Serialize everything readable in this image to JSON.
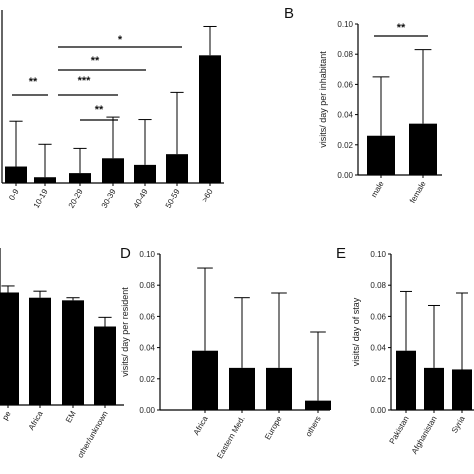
{
  "chart_data": [
    {
      "panel": "",
      "type": "bar",
      "categories": [
        "0-9",
        "10-19",
        "20-29",
        "30-39",
        "40-49",
        "50-59",
        ">60"
      ],
      "values": [
        0.2,
        0.07,
        0.12,
        0.3,
        0.22,
        0.35,
        1.55
      ],
      "errors": [
        0.55,
        0.4,
        0.3,
        0.5,
        0.55,
        0.75,
        0.35
      ],
      "ylim": [
        0,
        2.1
      ],
      "ylabel": "",
      "axis_y_visible": true,
      "significance": [
        {
          "from": "10-19",
          "to": "30-39",
          "label": "**"
        },
        {
          "from": "20-29",
          "to": "30-39",
          "label": "**"
        },
        {
          "from": "10-19",
          "to": "40-49",
          "label": "***"
        },
        {
          "from": "10-19",
          "to": "50-59",
          "label": "**"
        },
        {
          "from": "10-19",
          "to": "50-59",
          "label": "*"
        },
        {
          "from": "0-9",
          "to": "10-19",
          "label": "**"
        }
      ]
    },
    {
      "panel": "B",
      "type": "bar",
      "categories": [
        "male",
        "female"
      ],
      "values": [
        0.026,
        0.034
      ],
      "errors": [
        0.039,
        0.049
      ],
      "ylim": [
        0,
        0.1
      ],
      "yticks": [
        "0.00",
        "0.02",
        "0.04",
        "0.06",
        "0.08",
        "0.10"
      ],
      "ylabel": "visits/ day per inhabitant",
      "significance": [
        {
          "from": "male",
          "to": "female",
          "label": "**"
        }
      ]
    },
    {
      "panel": "",
      "type": "bar",
      "categories": [
        "Europe",
        "Africa",
        "EM",
        "other/unknown"
      ],
      "tick_display": [
        "pe",
        "Africa",
        "EM",
        "other/unknown"
      ],
      "values": [
        0.86,
        0.82,
        0.8,
        0.6
      ],
      "errors": [
        0.05,
        0.05,
        0.02,
        0.07
      ],
      "ylim": [
        0,
        1.2
      ],
      "ylabel": ""
    },
    {
      "panel": "D",
      "type": "bar",
      "categories": [
        "Africa",
        "Eastern Med.",
        "Europe",
        "others"
      ],
      "values": [
        0.038,
        0.027,
        0.027,
        0.006
      ],
      "errors": [
        0.053,
        0.045,
        0.048,
        0.044
      ],
      "ylim": [
        0,
        0.1
      ],
      "yticks": [
        "0.00",
        "0.02",
        "0.04",
        "0.06",
        "0.08",
        "0.10"
      ],
      "ylabel": "visits/ day per resident"
    },
    {
      "panel": "E",
      "type": "bar",
      "categories": [
        "Pakistan",
        "Afghanistan",
        "Syria"
      ],
      "values": [
        0.038,
        0.027,
        0.026
      ],
      "errors": [
        0.038,
        0.04,
        0.049
      ],
      "ylim": [
        0,
        0.1
      ],
      "yticks": [
        "0.00",
        "0.02",
        "0.04",
        "0.06",
        "0.08",
        "0.10"
      ],
      "ylabel": "visits/ day of stay"
    }
  ]
}
